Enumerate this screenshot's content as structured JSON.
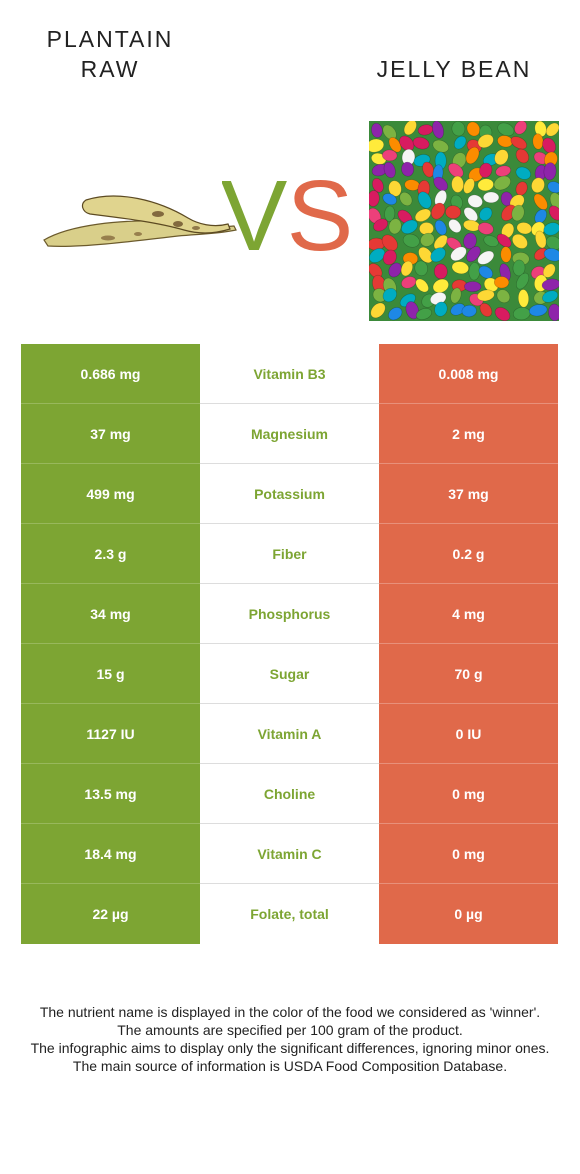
{
  "header": {
    "left_title_line1": "PLANTAIN",
    "left_title_line2": "RAW",
    "vs_v": "V",
    "vs_s": "S",
    "right_title": "JELLY BEAN"
  },
  "colors": {
    "winner_left": "#7da533",
    "winner_right": "#e0694a",
    "vs_v": "#7da533",
    "vs_s": "#e0694a"
  },
  "rows": [
    {
      "left": "0.686 mg",
      "nutrient": "Vitamin B3",
      "right": "0.008 mg"
    },
    {
      "left": "37 mg",
      "nutrient": "Magnesium",
      "right": "2 mg"
    },
    {
      "left": "499 mg",
      "nutrient": "Potassium",
      "right": "37 mg"
    },
    {
      "left": "2.3 g",
      "nutrient": "Fiber",
      "right": "0.2 g"
    },
    {
      "left": "34 mg",
      "nutrient": "Phosphorus",
      "right": "4 mg"
    },
    {
      "left": "15 g",
      "nutrient": "Sugar",
      "right": "70 g"
    },
    {
      "left": "1127 IU",
      "nutrient": "Vitamin A",
      "right": "0 IU"
    },
    {
      "left": "13.5 mg",
      "nutrient": "Choline",
      "right": "0 mg"
    },
    {
      "left": "18.4 mg",
      "nutrient": "Vitamin C",
      "right": "0 mg"
    },
    {
      "left": "22 µg",
      "nutrient": "Folate, total",
      "right": "0 µg"
    }
  ],
  "footer": {
    "line1": "The nutrient name is displayed in the color of the food we considered as 'winner'.",
    "line2": "The amounts are specified per 100 gram of the product.",
    "line3": "The infographic aims to display only the significant differences, ignoring minor ones.",
    "line4": "The main source of information is USDA Food Composition Database."
  }
}
